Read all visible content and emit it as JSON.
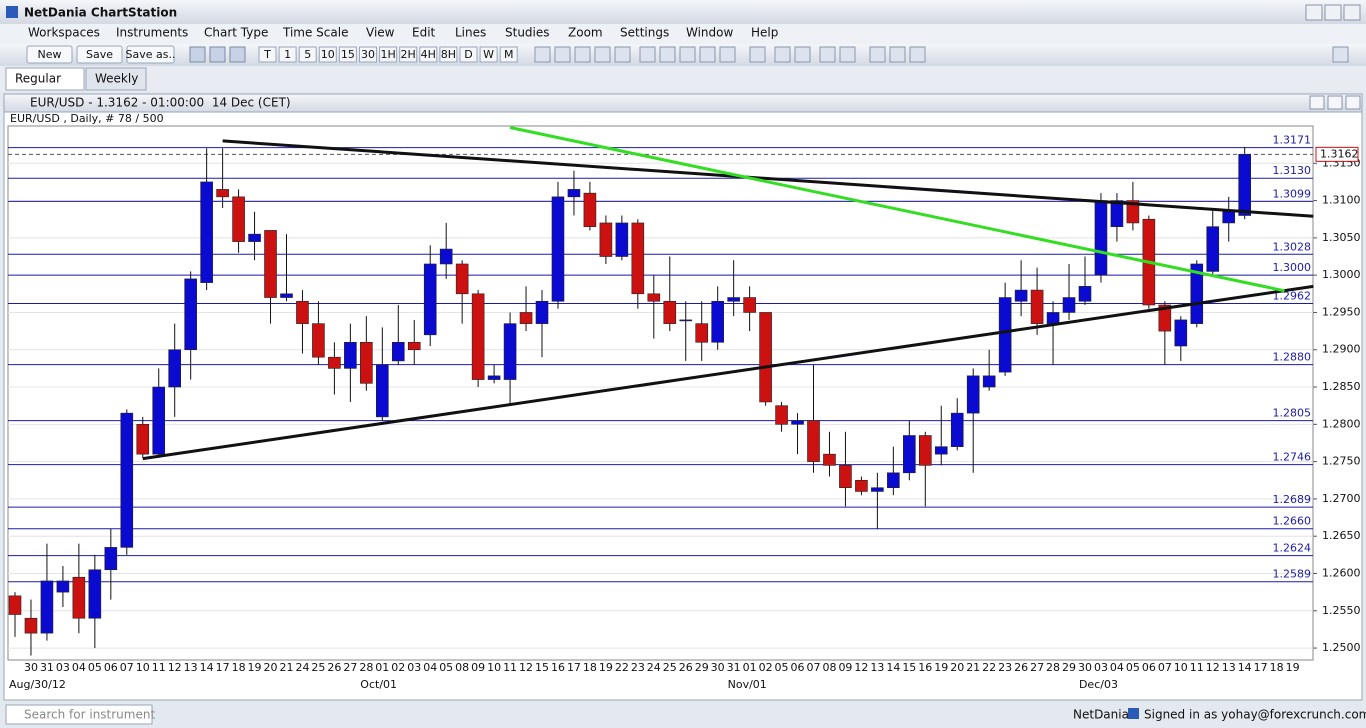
{
  "window": {
    "title": "NetDania ChartStation"
  },
  "menu": [
    "Workspaces",
    "Instruments",
    "Chart Type",
    "Time Scale",
    "View",
    "Edit",
    "Lines",
    "Studies",
    "Zoom",
    "Settings",
    "Window",
    "Help"
  ],
  "toolbar": {
    "buttons": [
      "New",
      "Save",
      "Save as.."
    ],
    "periods": [
      "T",
      "1",
      "5",
      "10",
      "15",
      "30",
      "1H",
      "2H",
      "4H",
      "8H",
      "D",
      "W",
      "M"
    ]
  },
  "tabs": [
    "Regular",
    "Weekly"
  ],
  "status": {
    "search_placeholder": "Search for instrument",
    "brand": "NetDania",
    "signed_in": "Signed in as yohay@forexcrunch.com"
  },
  "chart_data": {
    "type": "candlestick",
    "title": "EUR/USD - 1.3162 - 01:00:00  14 Dec (CET)",
    "subtitle": "EUR/USD , Daily, # 78 / 500",
    "categories": [
      null,
      "30",
      "31",
      "03",
      "04",
      "05",
      "06",
      "07",
      "10",
      "11",
      "12",
      "13",
      "14",
      "17",
      "18",
      "19",
      "20",
      "21",
      "24",
      "25",
      "26",
      "27",
      "28",
      "01",
      "02",
      "03",
      "04",
      "05",
      "08",
      "09",
      "10",
      "11",
      "12",
      "15",
      "16",
      "17",
      "18",
      "19",
      "22",
      "23",
      "24",
      "25",
      "26",
      "29",
      "30",
      "31",
      "01",
      "02",
      "05",
      "06",
      "07",
      "08",
      "09",
      "12",
      "13",
      "14",
      "15",
      "16",
      "19",
      "20",
      "21",
      "22",
      "23",
      "26",
      "27",
      "28",
      "29",
      "30",
      "03",
      "04",
      "05",
      "06",
      "07",
      "10",
      "11",
      "12",
      "13",
      "14",
      "17",
      "18",
      "19"
    ],
    "period_labels": [
      null,
      "Aug/30/12",
      null,
      null,
      null,
      null,
      null,
      null,
      null,
      null,
      null,
      null,
      null,
      null,
      null,
      null,
      null,
      null,
      null,
      null,
      null,
      null,
      null,
      "Oct/01",
      null,
      null,
      null,
      null,
      null,
      null,
      null,
      null,
      null,
      null,
      null,
      null,
      null,
      null,
      null,
      null,
      null,
      null,
      null,
      null,
      null,
      null,
      "Nov/01",
      null,
      null,
      null,
      null,
      null,
      null,
      null,
      null,
      null,
      null,
      null,
      null,
      null,
      null,
      null,
      null,
      null,
      null,
      null,
      null,
      null,
      "Dec/03",
      null,
      null,
      null,
      null,
      null,
      null,
      null,
      null,
      null,
      null,
      null,
      null
    ],
    "open": [
      1.257,
      1.254,
      1.252,
      1.2575,
      1.2595,
      1.254,
      1.2605,
      1.2635,
      1.28,
      1.276,
      1.285,
      1.29,
      1.299,
      1.3115,
      1.3105,
      1.3045,
      1.306,
      1.297,
      1.2965,
      1.2935,
      1.289,
      1.2875,
      1.291,
      1.281,
      1.2885,
      1.291,
      1.292,
      1.3015,
      1.3015,
      1.2975,
      1.286,
      1.286,
      1.295,
      1.2935,
      1.2965,
      1.3105,
      1.311,
      1.307,
      1.3025,
      1.307,
      1.2975,
      1.2965,
      1.294,
      1.2935,
      1.291,
      1.2965,
      1.297,
      1.295,
      1.2825,
      1.28,
      1.2805,
      1.276,
      1.2745,
      1.2725,
      1.271,
      1.2715,
      1.2735,
      1.2785,
      1.276,
      1.277,
      1.2815,
      1.285,
      1.287,
      1.2965,
      1.298,
      1.2935,
      1.295,
      1.2965,
      1.3,
      1.3065,
      1.31,
      1.3075,
      1.296,
      1.2905,
      1.2935,
      1.3005,
      1.307,
      1.308,
      null,
      null,
      null
    ],
    "high": [
      1.2575,
      1.2565,
      1.264,
      1.261,
      1.264,
      1.2625,
      1.266,
      1.282,
      1.281,
      1.2875,
      1.2935,
      1.3005,
      1.317,
      1.317,
      1.3115,
      1.3085,
      1.306,
      1.3055,
      1.298,
      1.2965,
      1.291,
      1.2935,
      1.2945,
      1.293,
      1.296,
      1.294,
      1.304,
      1.307,
      1.302,
      1.298,
      1.288,
      1.295,
      1.2985,
      1.298,
      1.3125,
      1.314,
      1.3125,
      1.308,
      1.308,
      1.3075,
      1.3,
      1.3025,
      1.2965,
      1.2965,
      1.2985,
      1.302,
      1.2985,
      1.295,
      1.283,
      1.2815,
      1.288,
      1.279,
      1.279,
      1.273,
      1.2735,
      1.277,
      1.2805,
      1.279,
      1.2825,
      1.2835,
      1.2875,
      1.29,
      1.299,
      1.302,
      1.301,
      1.2965,
      1.3015,
      1.3025,
      1.311,
      1.311,
      1.3125,
      1.308,
      1.2965,
      1.2945,
      1.302,
      1.309,
      1.3105,
      1.3172,
      null,
      null,
      null
    ],
    "low": [
      1.2515,
      1.249,
      1.251,
      1.2555,
      1.252,
      1.25,
      1.2565,
      1.2625,
      1.2755,
      1.2755,
      1.281,
      1.286,
      1.298,
      1.309,
      1.303,
      1.302,
      1.2935,
      1.2965,
      1.2895,
      1.288,
      1.284,
      1.283,
      1.2845,
      1.2805,
      1.288,
      1.288,
      1.2905,
      1.2995,
      1.2935,
      1.285,
      1.2855,
      1.2825,
      1.2925,
      1.289,
      1.2955,
      1.308,
      1.306,
      1.3015,
      1.302,
      1.2955,
      1.2915,
      1.2925,
      1.2885,
      1.2885,
      1.29,
      1.2945,
      1.2925,
      1.2825,
      1.279,
      1.276,
      1.2735,
      1.273,
      1.269,
      1.2705,
      1.266,
      1.2705,
      1.2725,
      1.269,
      1.2745,
      1.2765,
      1.2735,
      1.2845,
      1.2865,
      1.2945,
      1.292,
      1.288,
      1.294,
      1.296,
      1.299,
      1.3045,
      1.306,
      1.2955,
      1.288,
      1.2885,
      1.293,
      1.3,
      1.3045,
      1.3075,
      null,
      null,
      null
    ],
    "close": [
      1.2545,
      1.252,
      1.259,
      1.259,
      1.254,
      1.2605,
      1.2635,
      1.2815,
      1.276,
      1.285,
      1.29,
      1.2995,
      1.3125,
      1.3105,
      1.3045,
      1.3055,
      1.297,
      1.2975,
      1.2935,
      1.289,
      1.2875,
      1.291,
      1.2855,
      1.288,
      1.291,
      1.29,
      1.3015,
      1.3035,
      1.2975,
      1.286,
      1.2865,
      1.2935,
      1.2935,
      1.2965,
      1.3105,
      1.3115,
      1.3065,
      1.3025,
      1.307,
      1.2975,
      1.2965,
      1.2935,
      1.294,
      1.291,
      1.2965,
      1.297,
      1.295,
      1.283,
      1.28,
      1.2805,
      1.275,
      1.2745,
      1.2715,
      1.271,
      1.2715,
      1.2735,
      1.2785,
      1.2745,
      1.277,
      1.2815,
      1.2865,
      1.2865,
      1.297,
      1.298,
      1.2935,
      1.295,
      1.297,
      1.2985,
      1.31,
      1.31,
      1.307,
      1.296,
      1.2925,
      1.294,
      1.3015,
      1.3065,
      1.3085,
      1.3162,
      null,
      null,
      null
    ],
    "up_color": "#0a0ad0",
    "down_color": "#cc1111",
    "ylim": [
      1.2484,
      1.32
    ],
    "yticks": [
      {
        "value": 1.25,
        "label": "1.2500"
      },
      {
        "value": 1.255,
        "label": "1.2550"
      },
      {
        "value": 1.26,
        "label": "1.2600"
      },
      {
        "value": 1.265,
        "label": "1.2650"
      },
      {
        "value": 1.27,
        "label": "1.2700"
      },
      {
        "value": 1.275,
        "label": "1.2750"
      },
      {
        "value": 1.28,
        "label": "1.2800"
      },
      {
        "value": 1.285,
        "label": "1.2850"
      },
      {
        "value": 1.29,
        "label": "1.2900"
      },
      {
        "value": 1.295,
        "label": "1.2950"
      },
      {
        "value": 1.3,
        "label": "1.3000"
      },
      {
        "value": 1.305,
        "label": "1.3050"
      },
      {
        "value": 1.31,
        "label": "1.3100"
      },
      {
        "value": 1.315,
        "label": "1.3150"
      }
    ],
    "grid": true,
    "level_color": "#1c1ca8",
    "levels": [
      1.3171,
      {
        "value": 1.313,
        "label": "1.3130"
      },
      1.3099,
      1.3028,
      {
        "value": 1.3,
        "label": "1.3000"
      },
      1.2962,
      {
        "value": 1.288,
        "label": "1.2880"
      },
      1.2805,
      1.2746,
      1.2689,
      {
        "value": 1.266,
        "label": "1.2660"
      },
      1.2624,
      1.2589
    ],
    "last_price": 1.3162,
    "trend_lines": [
      {
        "color": "#111111",
        "x": [
          13,
          81.3
        ],
        "y": [
          1.318,
          1.3079
        ]
      },
      {
        "color": "#111111",
        "x": [
          8,
          81.3
        ],
        "y": [
          1.2754,
          1.2985
        ]
      },
      {
        "color": "#33dd22",
        "x": [
          31,
          79.5
        ],
        "y": [
          1.3198,
          1.2979
        ]
      }
    ]
  }
}
